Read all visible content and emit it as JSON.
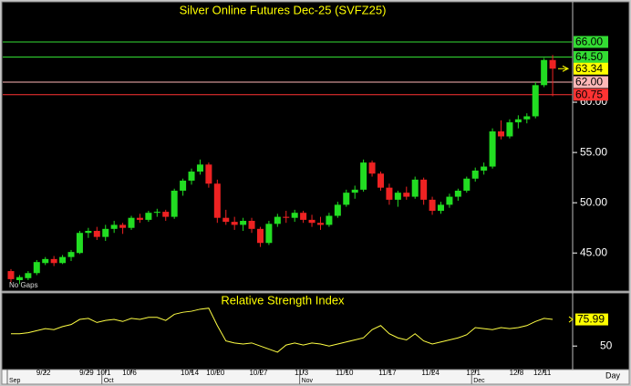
{
  "chart_data": [
    {
      "type": "candlestick",
      "title": "Silver Online Futures Dec-25 (SVFZ25)",
      "note": "No Gaps",
      "x_axis_label": "Day",
      "categories": [
        null,
        null,
        null,
        null,
        "9/22",
        null,
        null,
        null,
        null,
        "9/29",
        null,
        "10/1",
        null,
        null,
        "10/6",
        null,
        null,
        null,
        null,
        null,
        null,
        "10/14",
        null,
        null,
        "10/20",
        null,
        null,
        null,
        null,
        "10/27",
        null,
        null,
        null,
        null,
        "11/3",
        null,
        null,
        null,
        null,
        "11/10",
        null,
        null,
        null,
        null,
        "11/17",
        null,
        null,
        null,
        null,
        "11/24",
        null,
        null,
        null,
        null,
        "12/1",
        null,
        null,
        null,
        null,
        "12/8",
        null,
        null,
        "12/11",
        null
      ],
      "months": [
        {
          "value": 0,
          "label": "Sep"
        },
        {
          "value": 11,
          "label": "Oct"
        },
        {
          "value": 34,
          "label": "Nov"
        },
        {
          "value": 54,
          "label": "Dec"
        }
      ],
      "open": [
        43.2,
        42.3,
        42.5,
        43.0,
        44.0,
        44.4,
        44.0,
        44.6,
        45.0,
        47.0,
        47.2,
        46.6,
        47.4,
        47.8,
        47.5,
        48.5,
        48.3,
        49.0,
        49.1,
        48.6,
        51.2,
        52.2,
        53.1,
        53.8,
        51.9,
        48.5,
        48.1,
        47.8,
        48.2,
        47.4,
        46.0,
        47.9,
        48.6,
        48.5,
        49.0,
        48.3,
        48.0,
        47.8,
        48.7,
        49.8,
        51.0,
        51.3,
        54.0,
        52.9,
        51.5,
        50.3,
        51.0,
        50.6,
        52.3,
        50.3,
        49.2,
        49.8,
        50.6,
        51.2,
        52.4,
        53.2,
        53.6,
        57.1,
        56.6,
        58.0,
        58.3,
        58.6,
        61.7,
        64.2
      ],
      "high": [
        43.4,
        42.8,
        43.2,
        44.3,
        44.6,
        44.7,
        44.8,
        45.3,
        47.2,
        47.5,
        47.6,
        47.8,
        48.2,
        48.0,
        48.7,
        48.9,
        49.2,
        49.4,
        49.3,
        51.4,
        52.4,
        53.4,
        54.3,
        54.0,
        52.3,
        49.3,
        48.6,
        48.5,
        48.5,
        47.6,
        48.2,
        48.9,
        49.2,
        49.3,
        49.2,
        48.8,
        48.6,
        49.0,
        50.1,
        51.3,
        51.7,
        54.3,
        54.2,
        53.1,
        51.9,
        51.2,
        51.6,
        52.6,
        52.5,
        50.6,
        50.1,
        50.9,
        51.4,
        52.6,
        53.5,
        54.0,
        57.4,
        58.2,
        58.3,
        58.7,
        58.9,
        62.0,
        64.4,
        64.7
      ],
      "low": [
        42.1,
        41.9,
        42.3,
        42.8,
        43.8,
        43.7,
        43.9,
        44.2,
        44.9,
        46.5,
        46.3,
        46.2,
        47.0,
        46.9,
        47.3,
        48.0,
        48.1,
        48.6,
        48.2,
        48.4,
        50.7,
        51.8,
        52.8,
        51.5,
        48.0,
        47.8,
        47.3,
        47.2,
        47.0,
        45.6,
        45.8,
        47.6,
        48.0,
        48.1,
        48.0,
        47.6,
        47.3,
        47.6,
        48.5,
        49.6,
        50.4,
        51.1,
        52.6,
        51.2,
        49.8,
        49.6,
        50.3,
        50.4,
        49.8,
        48.8,
        48.9,
        49.5,
        50.2,
        51.0,
        52.1,
        52.8,
        53.4,
        56.3,
        56.4,
        57.4,
        57.9,
        58.4,
        61.5,
        60.6
      ],
      "close": [
        42.4,
        42.6,
        43.0,
        44.1,
        44.4,
        44.0,
        44.6,
        45.1,
        47.0,
        47.2,
        46.6,
        47.4,
        47.8,
        47.5,
        48.5,
        48.3,
        49.0,
        49.1,
        48.6,
        51.2,
        52.2,
        53.1,
        53.8,
        51.9,
        48.5,
        48.1,
        47.8,
        48.2,
        47.4,
        46.0,
        47.9,
        48.6,
        48.5,
        49.0,
        48.3,
        48.0,
        47.8,
        48.7,
        49.8,
        51.0,
        51.3,
        54.0,
        52.9,
        51.5,
        50.3,
        51.0,
        50.6,
        52.3,
        50.3,
        49.2,
        49.8,
        50.6,
        51.2,
        52.4,
        53.2,
        53.6,
        57.1,
        56.6,
        58.0,
        58.3,
        58.6,
        61.7,
        64.2,
        63.34
      ],
      "up_color": "#22dd22",
      "down_color": "#ee2222",
      "last_price_color": "#ffff00",
      "ylim": [
        41.3,
        69.9
      ],
      "yticks": [
        {
          "value": 45,
          "label": "45.00"
        },
        {
          "value": 50,
          "label": "50.00"
        },
        {
          "value": 55,
          "label": "55.00"
        },
        {
          "value": 60,
          "label": "60.00"
        }
      ],
      "levels": [
        {
          "value": 66,
          "label": "66.00",
          "color": "#33dd33"
        },
        {
          "value": 64.5,
          "label": "64.50",
          "color": "#33dd33"
        },
        {
          "value": 62,
          "label": "62.00",
          "color": "#ffb8b8"
        },
        {
          "value": 60.75,
          "label": "60.75",
          "color": "#ff3333"
        }
      ]
    },
    {
      "type": "line",
      "title": "Relative Strength Index",
      "color": "#ffff44",
      "last_value_color": "#ffff00",
      "values": [
        62,
        62,
        63,
        65,
        67,
        66,
        69,
        71,
        76,
        77,
        73,
        75,
        76,
        74,
        77,
        76,
        78,
        78,
        75,
        81,
        83,
        84,
        86,
        87,
        70,
        55,
        53,
        52,
        53,
        50,
        47,
        44,
        51,
        53,
        51,
        53,
        52,
        50,
        52,
        54,
        56,
        58,
        66,
        70,
        62,
        58,
        56,
        62,
        55,
        52,
        54,
        56,
        58,
        61,
        68,
        67,
        66,
        68,
        67,
        68,
        70,
        74,
        77,
        75.99
      ],
      "ylim": [
        27,
        101
      ],
      "yticks": [
        50
      ]
    }
  ]
}
